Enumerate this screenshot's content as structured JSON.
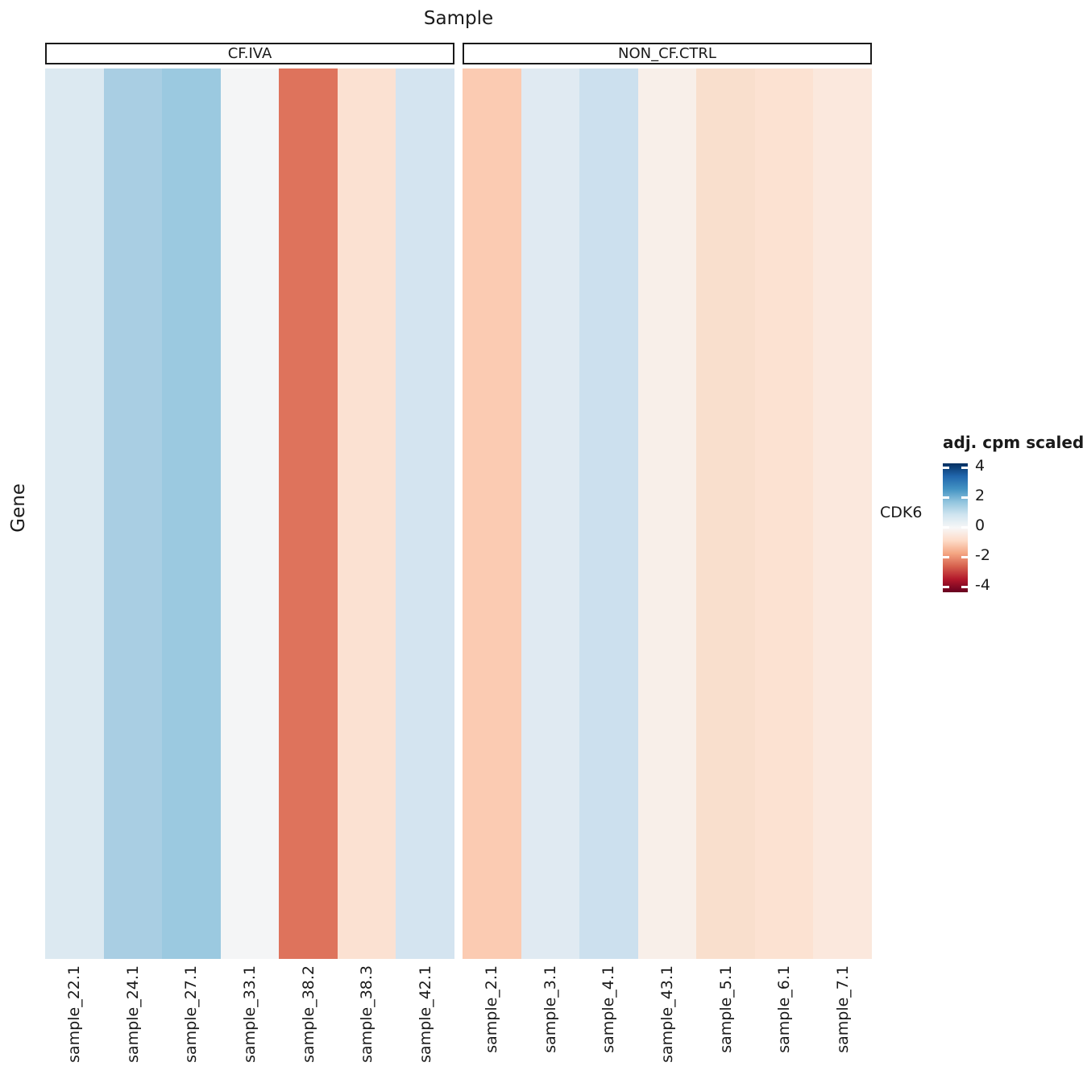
{
  "title": "Sample",
  "y_axis_title": "Gene",
  "row_label": "CDK6",
  "legend": {
    "title": "adj. cpm scaled",
    "ticks": [
      "4",
      "2",
      "0",
      "-2",
      "-4"
    ]
  },
  "chart_data": {
    "type": "heatmap",
    "title": "Sample",
    "xlabel": "Sample",
    "ylabel": "Gene",
    "rows": [
      "CDK6"
    ],
    "column_groups": [
      {
        "label": "CF.IVA",
        "columns": [
          "sample_22.1",
          "sample_24.1",
          "sample_27.1",
          "sample_33.1",
          "sample_38.2",
          "sample_38.3",
          "sample_42.1"
        ],
        "values": [
          0.9,
          1.8,
          2.0,
          0.05,
          -2.9,
          -0.8,
          1.0
        ],
        "cell_colors": [
          "#dce9f1",
          "#a9cee3",
          "#9bc9e0",
          "#f4f5f6",
          "#de735c",
          "#fbe1d2",
          "#d4e4f0"
        ]
      },
      {
        "label": "NON_CF.CTRL",
        "columns": [
          "sample_2.1",
          "sample_3.1",
          "sample_4.1",
          "sample_43.1",
          "sample_5.1",
          "sample_6.1",
          "sample_7.1"
        ],
        "values": [
          -1.5,
          0.8,
          1.2,
          -0.2,
          -0.9,
          -0.8,
          -0.6
        ],
        "cell_colors": [
          "#fbcbb2",
          "#e0eaf2",
          "#cce0ee",
          "#f8efe9",
          "#f9dfcd",
          "#fce2d2",
          "#fbe8dd"
        ]
      }
    ],
    "colorscale": {
      "name": "RdBu (blue = high, red = low)",
      "domain": [
        -4,
        4
      ],
      "legend_title": "adj. cpm scaled",
      "legend_ticks": [
        4,
        2,
        0,
        -2,
        -4
      ],
      "stops": [
        "#053061",
        "#2166ac",
        "#4393c3",
        "#92c5de",
        "#d1e5f0",
        "#f7f7f7",
        "#fddbc7",
        "#f4a582",
        "#d6604d",
        "#b2182b",
        "#67001f"
      ]
    },
    "legend_position": "right",
    "grid": false
  }
}
